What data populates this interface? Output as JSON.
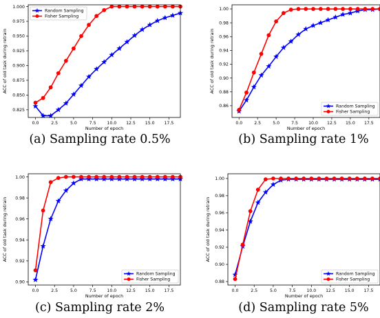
{
  "colors": {
    "random": "#0000ff",
    "fisher": "#ff0000"
  },
  "chart_data": [
    {
      "type": "line",
      "caption": "(a) Sampling rate 0.5%",
      "xlabel": "Number of epoch",
      "ylabel": "ACC of old task during retrain",
      "xlim": [
        -0.95,
        19.0
      ],
      "ylim": [
        0.812,
        1.003
      ],
      "xticks": [
        "0.0",
        "2.5",
        "5.0",
        "7.5",
        "10.0",
        "12.5",
        "15.0",
        "17.5"
      ],
      "yticks": [
        "0.825",
        "0.850",
        "0.875",
        "0.900",
        "0.925",
        "0.950",
        "0.975",
        "1.000"
      ],
      "legend_position": "upper-left",
      "x": [
        0,
        1,
        2,
        3,
        4,
        5,
        6,
        7,
        8,
        9,
        10,
        11,
        12,
        13,
        14,
        15,
        16,
        17,
        18,
        19
      ],
      "series": [
        {
          "name": "Random Sampling",
          "marker": "star",
          "color": "random",
          "values": [
            0.831,
            0.815,
            0.815,
            0.825,
            0.836,
            0.851,
            0.866,
            0.881,
            0.894,
            0.906,
            0.918,
            0.929,
            0.94,
            0.951,
            0.961,
            0.969,
            0.976,
            0.981,
            0.985,
            0.989
          ]
        },
        {
          "name": "Fisher Sampling",
          "marker": "circle",
          "color": "fisher",
          "values": [
            0.837,
            0.845,
            0.863,
            0.887,
            0.908,
            0.929,
            0.95,
            0.969,
            0.984,
            0.994,
            1.0,
            1.0,
            1.0,
            1.0,
            1.0,
            1.0,
            1.0,
            1.0,
            1.0,
            1.0
          ]
        }
      ]
    },
    {
      "type": "line",
      "caption": "(b) Sampling rate 1%",
      "xlabel": "Number of epoch",
      "ylabel": "ACC of old task during retrain",
      "xlim": [
        -0.95,
        19.0
      ],
      "ylim": [
        0.843,
        1.006
      ],
      "xticks": [
        "0.0",
        "2.5",
        "5.0",
        "7.5",
        "10.0",
        "12.5",
        "15.0",
        "17.5"
      ],
      "yticks": [
        "0.86",
        "0.88",
        "0.90",
        "0.92",
        "0.94",
        "0.96",
        "0.98",
        "1.00"
      ],
      "legend_position": "lower-right",
      "x": [
        0,
        1,
        2,
        3,
        4,
        5,
        6,
        7,
        8,
        9,
        10,
        11,
        12,
        13,
        14,
        15,
        16,
        17,
        18,
        19
      ],
      "series": [
        {
          "name": "Random Sampling",
          "marker": "star",
          "color": "random",
          "values": [
            0.852,
            0.868,
            0.887,
            0.904,
            0.917,
            0.931,
            0.944,
            0.953,
            0.963,
            0.971,
            0.976,
            0.98,
            0.984,
            0.988,
            0.992,
            0.994,
            0.997,
            0.999,
            0.999,
            1.0
          ]
        },
        {
          "name": "Fisher Sampling",
          "marker": "circle",
          "color": "fisher",
          "values": [
            0.854,
            0.879,
            0.908,
            0.935,
            0.962,
            0.982,
            0.994,
            0.999,
            1.0,
            1.0,
            1.0,
            1.0,
            1.0,
            1.0,
            1.0,
            1.0,
            1.0,
            1.0,
            1.0,
            1.0
          ]
        }
      ]
    },
    {
      "type": "line",
      "caption": "(c) Sampling rate 2%",
      "xlabel": "Number of epoch",
      "ylabel": "ACC of old task during retrain",
      "xlim": [
        -0.95,
        19.0
      ],
      "ylim": [
        0.897,
        1.003
      ],
      "xticks": [
        "0.0",
        "2.5",
        "5.0",
        "7.5",
        "10.0",
        "12.5",
        "15.0",
        "17.5"
      ],
      "yticks": [
        "0.90",
        "0.92",
        "0.94",
        "0.96",
        "0.98",
        "1.00"
      ],
      "legend_position": "lower-right",
      "x": [
        0,
        1,
        2,
        3,
        4,
        5,
        6,
        7,
        8,
        9,
        10,
        11,
        12,
        13,
        14,
        15,
        16,
        17,
        18,
        19
      ],
      "series": [
        {
          "name": "Random Sampling",
          "marker": "star",
          "color": "random",
          "values": [
            0.902,
            0.934,
            0.96,
            0.977,
            0.987,
            0.994,
            0.998,
            0.998,
            0.998,
            0.998,
            0.998,
            0.998,
            0.998,
            0.998,
            0.998,
            0.998,
            0.998,
            0.998,
            0.998,
            0.998
          ]
        },
        {
          "name": "Fisher Sampling",
          "marker": "circle",
          "color": "fisher",
          "values": [
            0.911,
            0.968,
            0.995,
            0.999,
            1.0,
            1.0,
            1.0,
            1.0,
            1.0,
            1.0,
            1.0,
            1.0,
            1.0,
            1.0,
            1.0,
            1.0,
            1.0,
            1.0,
            1.0,
            1.0
          ]
        }
      ]
    },
    {
      "type": "line",
      "caption": "(d) Sampling rate 5%",
      "xlabel": "Number of epoch",
      "ylabel": "ACC of old task during retrain",
      "xlim": [
        -0.95,
        19.0
      ],
      "ylim": [
        0.876,
        1.0055
      ],
      "xticks": [
        "0.0",
        "2.5",
        "5.0",
        "7.5",
        "10.0",
        "12.5",
        "15.0",
        "17.5"
      ],
      "yticks": [
        "0.88",
        "0.90",
        "0.92",
        "0.94",
        "0.96",
        "0.98",
        "1.00"
      ],
      "legend_position": "lower-right",
      "x": [
        0,
        1,
        2,
        3,
        4,
        5,
        6,
        7,
        8,
        9,
        10,
        11,
        12,
        13,
        14,
        15,
        16,
        17,
        18,
        19
      ],
      "series": [
        {
          "name": "Random Sampling",
          "marker": "star",
          "color": "random",
          "values": [
            0.888,
            0.921,
            0.95,
            0.972,
            0.984,
            0.993,
            0.998,
            0.999,
            0.999,
            0.999,
            0.999,
            0.999,
            0.999,
            0.999,
            0.999,
            0.999,
            0.999,
            0.999,
            0.999,
            0.999
          ]
        },
        {
          "name": "Fisher Sampling",
          "marker": "circle",
          "color": "fisher",
          "values": [
            0.883,
            0.923,
            0.962,
            0.987,
            0.999,
            1.0,
            1.0,
            1.0,
            1.0,
            1.0,
            1.0,
            1.0,
            1.0,
            1.0,
            1.0,
            1.0,
            1.0,
            1.0,
            1.0,
            1.0
          ]
        }
      ]
    }
  ]
}
